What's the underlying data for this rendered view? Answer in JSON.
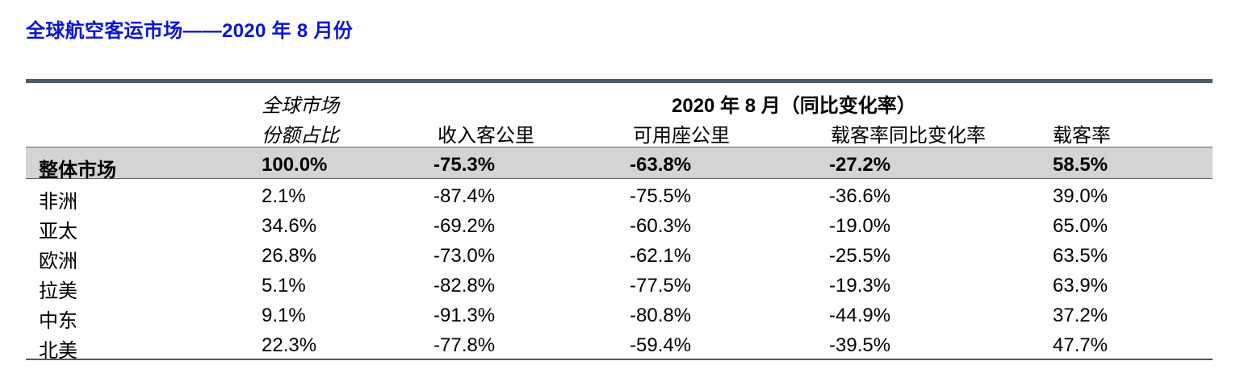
{
  "title": "全球航空客运市场——2020 年 8 月份",
  "header": {
    "share_line1": "全球市场",
    "share_line2": "份额占比",
    "period": "2020 年 8 月（同比变化率）",
    "col_rpk": "收入客公里",
    "col_ask": "可用座公里",
    "col_plf_change": "载客率同比变化率",
    "col_plf": "载客率"
  },
  "total": {
    "region": "整体市场",
    "share": "100.0%",
    "rpk": "-75.3%",
    "ask": "-63.8%",
    "plf_change": "-27.2%",
    "plf": "58.5%"
  },
  "rows": [
    {
      "region": "非洲",
      "share": "2.1%",
      "rpk": "-87.4%",
      "ask": "-75.5%",
      "plf_change": "-36.6%",
      "plf": "39.0%"
    },
    {
      "region": "亚太",
      "share": "34.6%",
      "rpk": "-69.2%",
      "ask": "-60.3%",
      "plf_change": "-19.0%",
      "plf": "65.0%"
    },
    {
      "region": "欧洲",
      "share": "26.8%",
      "rpk": "-73.0%",
      "ask": "-62.1%",
      "plf_change": "-25.5%",
      "plf": "63.5%"
    },
    {
      "region": "拉美",
      "share": "5.1%",
      "rpk": "-82.8%",
      "ask": "-77.5%",
      "plf_change": "-19.3%",
      "plf": "63.9%"
    },
    {
      "region": "中东",
      "share": "9.1%",
      "rpk": "-91.3%",
      "ask": "-80.8%",
      "plf_change": "-44.9%",
      "plf": "37.2%"
    },
    {
      "region": "北美",
      "share": "22.3%",
      "rpk": "-77.8%",
      "ask": "-59.4%",
      "plf_change": "-39.5%",
      "plf": "47.7%"
    }
  ]
}
